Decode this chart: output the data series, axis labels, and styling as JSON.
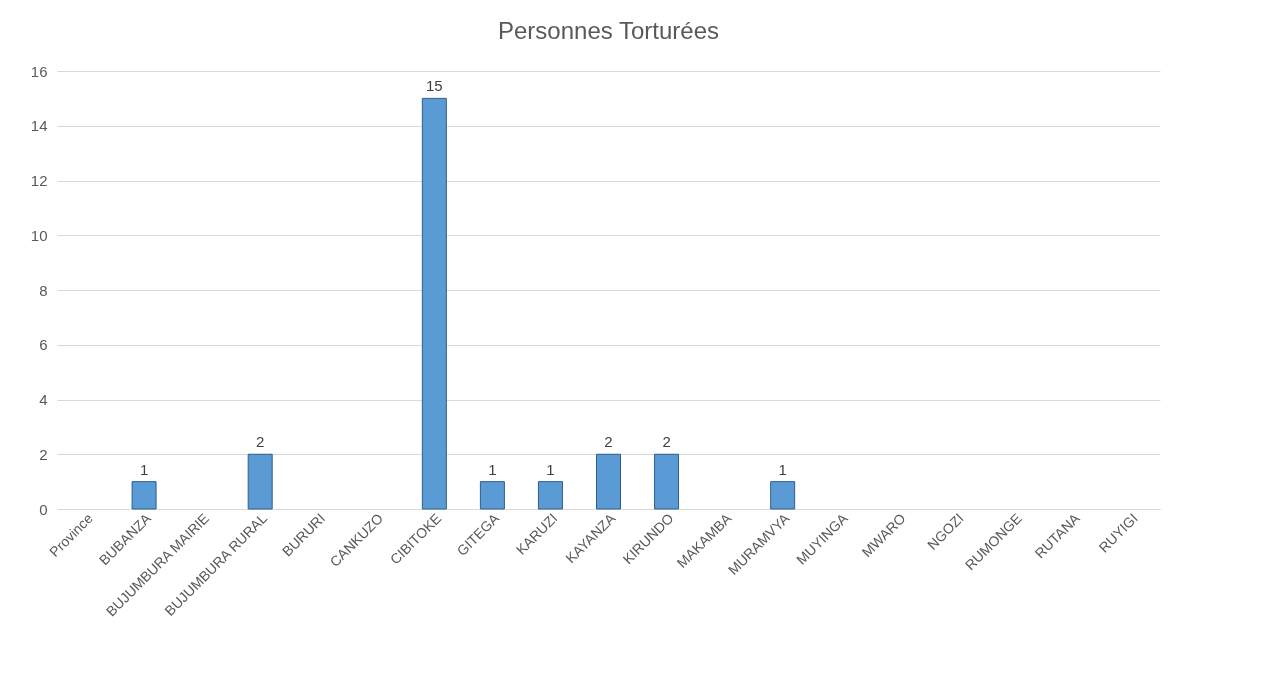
{
  "chart_data": {
    "type": "bar",
    "title": "Personnes Torturées",
    "categories": [
      "Province",
      "BUBANZA",
      "BUJUMBURA MAIRIE",
      "BUJUMBURA RURAL",
      "BURURI",
      "CANKUZO",
      "CIBITOKE",
      "GITEGA",
      "KARUZI",
      "KAYANZA",
      "KIRUNDO",
      "MAKAMBA",
      "MURAMVYA",
      "MUYINGA",
      "MWARO",
      "NGOZI",
      "RUMONGE",
      "RUTANA",
      "RUYIGI"
    ],
    "values": [
      null,
      1,
      null,
      2,
      null,
      null,
      15,
      1,
      1,
      2,
      2,
      null,
      1,
      null,
      null,
      null,
      null,
      null,
      null
    ],
    "color": "#5b9bd5",
    "ylim": [
      0,
      16
    ],
    "yticks": [
      0,
      2,
      4,
      6,
      8,
      10,
      12,
      14,
      16
    ],
    "grid": "y",
    "data_labels": true
  }
}
